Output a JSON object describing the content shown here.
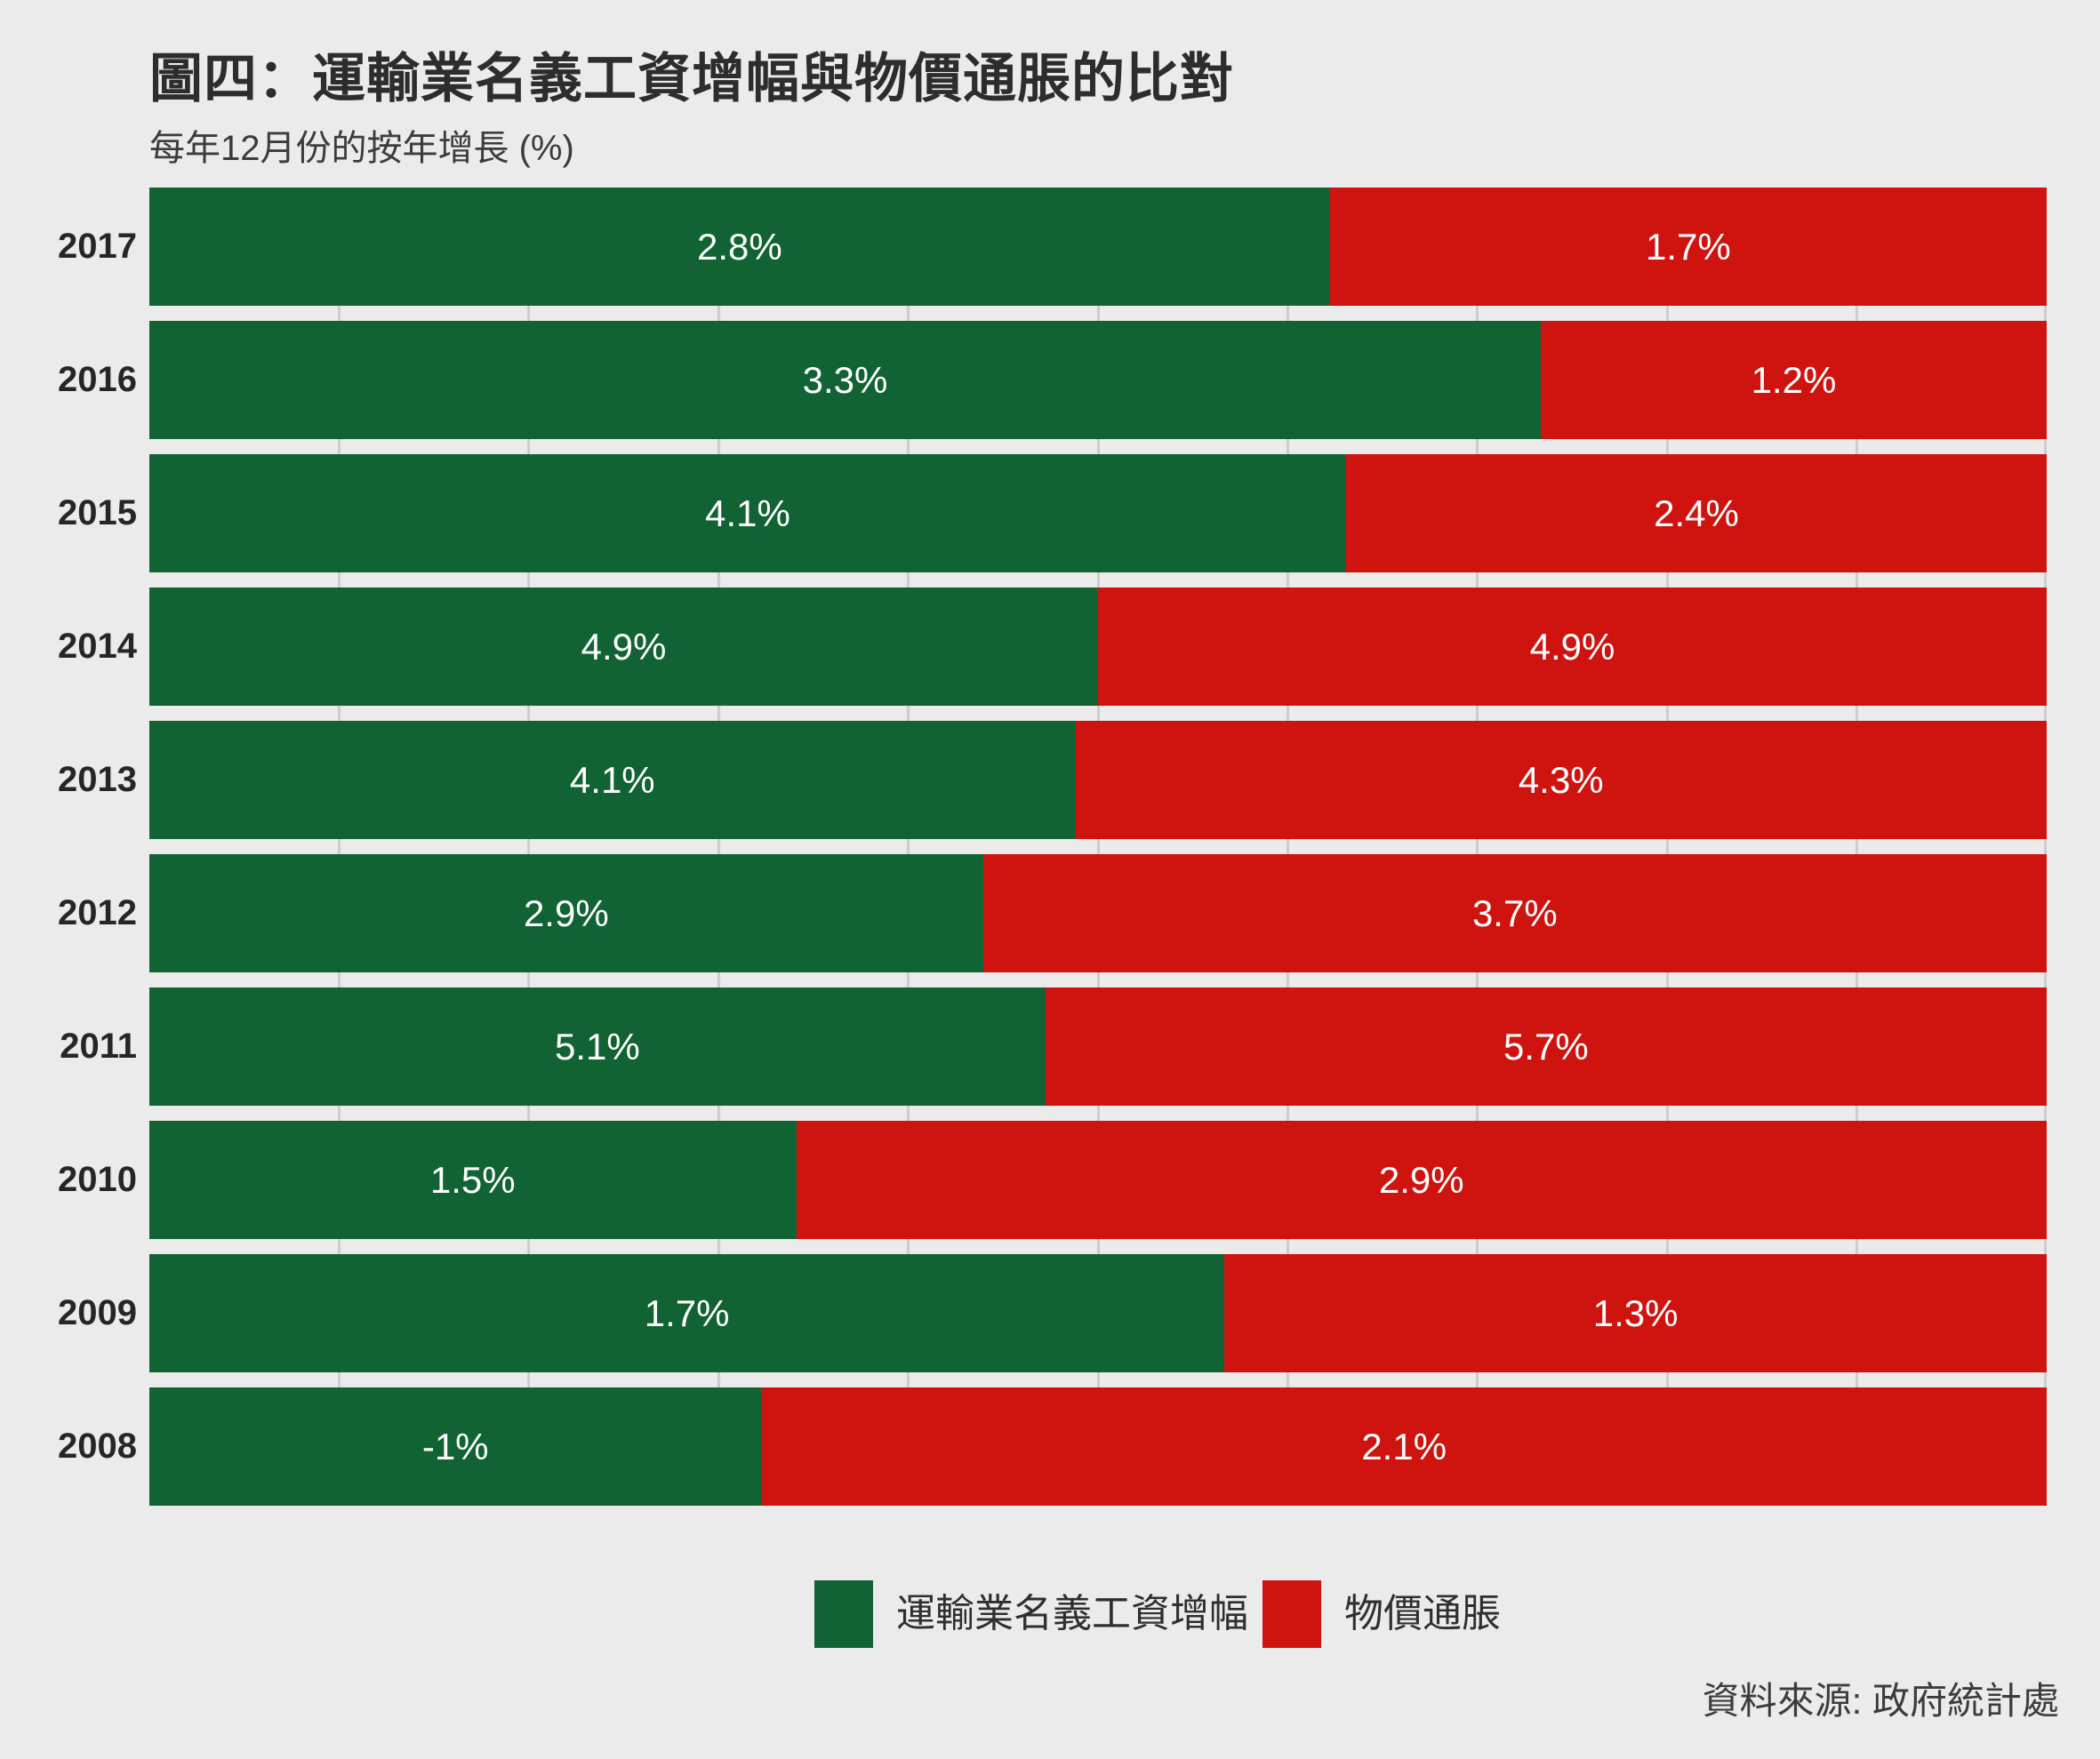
{
  "header": {
    "title": "圖四：運輸業名義工資增幅與物價通脹的比對",
    "subtitle": "每年12月份的按年增長 (%)"
  },
  "source": "資料來源: 政府統計處",
  "colors": {
    "background": "#ebebeb",
    "wage_green": "#116333",
    "inflation_red": "#cf1410",
    "gridline": "#cdcdcd"
  },
  "legend": {
    "items": [
      {
        "label": "運輸業名義工資增幅",
        "color": "#116333"
      },
      {
        "label": "物價通脹",
        "color": "#cf1410"
      }
    ]
  },
  "chart_data": {
    "type": "bar",
    "variant": "horizontal-100pct-stacked",
    "title": "圖四：運輸業名義工資增幅與物價通脹的比對",
    "ylabel": "每年12月份的按年增長 (%)",
    "categories": [
      "2017",
      "2016",
      "2015",
      "2014",
      "2013",
      "2012",
      "2011",
      "2010",
      "2009",
      "2008"
    ],
    "series": [
      {
        "name": "運輸業名義工資增幅",
        "color": "#116333",
        "values": [
          2.8,
          3.3,
          4.1,
          4.9,
          4.1,
          2.9,
          5.1,
          1.5,
          1.7,
          -1
        ],
        "labels": [
          "2.8%",
          "3.3%",
          "4.1%",
          "4.9%",
          "4.1%",
          "2.9%",
          "5.1%",
          "1.5%",
          "1.7%",
          "-1%"
        ]
      },
      {
        "name": "物價通脹",
        "color": "#cf1410",
        "values": [
          1.7,
          1.2,
          2.4,
          4.9,
          4.3,
          3.7,
          5.7,
          2.9,
          1.3,
          2.1
        ],
        "labels": [
          "1.7%",
          "1.2%",
          "2.4%",
          "4.9%",
          "4.3%",
          "3.7%",
          "5.7%",
          "2.9%",
          "1.3%",
          "2.1%"
        ]
      }
    ],
    "segment_width_rule": "green_share = |wage| / (|wage| + |inflation|)",
    "x_axis": {
      "gridlines_percent": [
        10,
        20,
        30,
        40,
        50,
        60,
        70,
        80,
        90,
        100
      ],
      "tick_labels_visible": false
    },
    "legend_position": "bottom"
  }
}
